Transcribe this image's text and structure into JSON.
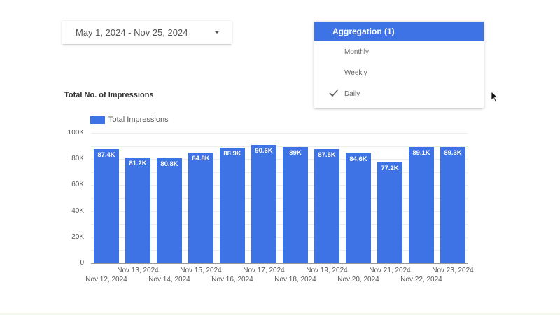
{
  "date_range": {
    "label": "May 1, 2024 - Nov 25, 2024"
  },
  "aggregation": {
    "title": "Aggregation (1)",
    "options": [
      {
        "label": "Monthly",
        "selected": false
      },
      {
        "label": "Weekly",
        "selected": false
      },
      {
        "label": "Daily",
        "selected": true
      }
    ]
  },
  "chart": {
    "title": "Total No. of Impressions",
    "legend": "Total Impressions",
    "bar_color": "#3e73e5"
  },
  "chart_data": {
    "type": "bar",
    "title": "Total No. of Impressions",
    "xlabel": "",
    "ylabel": "",
    "categories": [
      "Nov 12, 2024",
      "Nov 13, 2024",
      "Nov 14, 2024",
      "Nov 15, 2024",
      "Nov 16, 2024",
      "Nov 17, 2024",
      "Nov 18, 2024",
      "Nov 19, 2024",
      "Nov 20, 2024",
      "Nov 21, 2024",
      "Nov 22, 2024",
      "Nov 23, 2024"
    ],
    "series": [
      {
        "name": "Total Impressions",
        "values": [
          87400,
          81200,
          80800,
          84800,
          88900,
          90600,
          89000,
          87500,
          84600,
          77200,
          89100,
          89300
        ]
      }
    ],
    "value_labels": [
      "87.4K",
      "81.2K",
      "80.8K",
      "84.8K",
      "88.9K",
      "90.6K",
      "89K",
      "87.5K",
      "84.6K",
      "77.2K",
      "89.1K",
      "89.3K"
    ],
    "yticks": [
      "0",
      "20K",
      "40K",
      "60K",
      "80K",
      "100K"
    ],
    "ylim": [
      0,
      100000
    ],
    "grid": true,
    "legend_position": "top-left"
  }
}
